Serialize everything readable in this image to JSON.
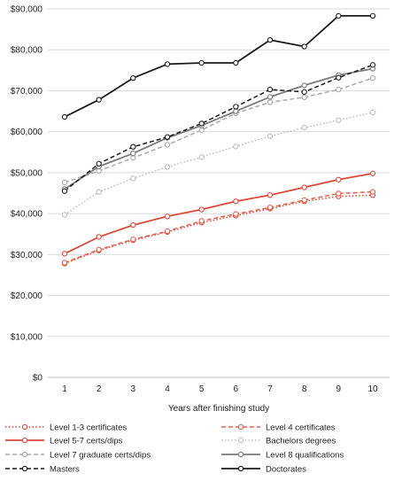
{
  "chart_data": {
    "type": "line",
    "title": "",
    "xlabel": "Years after finishing study",
    "ylabel": "",
    "x": [
      1,
      2,
      3,
      4,
      5,
      6,
      7,
      8,
      9,
      10
    ],
    "xlim": [
      1,
      10
    ],
    "ylim": [
      0,
      90000
    ],
    "yticks": [
      0,
      10000,
      20000,
      30000,
      40000,
      50000,
      60000,
      70000,
      80000,
      90000
    ],
    "ytick_labels": [
      "$0",
      "$10,000",
      "$20,000",
      "$30,000",
      "$40,000",
      "$50,000",
      "$60,000",
      "$70,000",
      "$80,000",
      "$90,000"
    ],
    "xtick_labels": [
      "1",
      "2",
      "3",
      "4",
      "5",
      "6",
      "7",
      "8",
      "9",
      "10"
    ],
    "grid": "horizontal",
    "legend_position": "bottom",
    "series": [
      {
        "name": "Level 1-3 certificates",
        "color": "#d94a3a",
        "dash": "dotted",
        "values": [
          27800,
          31000,
          33500,
          35500,
          37800,
          39500,
          41200,
          43000,
          44200,
          44500
        ]
      },
      {
        "name": "Level 4 certificates",
        "color": "#e0604e",
        "dash": "dashed",
        "values": [
          28000,
          31200,
          33700,
          35700,
          38200,
          39900,
          41500,
          43300,
          44900,
          45300
        ]
      },
      {
        "name": "Level 5-7 certs/dips",
        "color": "#d94a3a",
        "dash": "solid",
        "values": [
          30200,
          34300,
          37200,
          39300,
          41000,
          43000,
          44500,
          46400,
          48300,
          49800
        ]
      },
      {
        "name": "Bachelors degrees",
        "color": "#bdbdbd",
        "dash": "dotted",
        "values": [
          39700,
          45300,
          48600,
          51400,
          53800,
          56400,
          58900,
          61000,
          62800,
          64700
        ]
      },
      {
        "name": "Level 7 graduate certs/dips",
        "color": "#a8a8a8",
        "dash": "dashed",
        "values": [
          47600,
          50400,
          53600,
          56800,
          60400,
          64500,
          67200,
          68400,
          70300,
          73100
        ]
      },
      {
        "name": "Level 8 qualifications",
        "color": "#7a7a7a",
        "dash": "solid",
        "values": [
          46000,
          51500,
          54700,
          58500,
          61500,
          65000,
          68500,
          71300,
          73800,
          75400
        ]
      },
      {
        "name": "Masters",
        "color": "#1a1a1a",
        "dash": "dashed",
        "values": [
          45500,
          52200,
          56300,
          58700,
          62000,
          66100,
          70300,
          69700,
          73200,
          76300
        ]
      },
      {
        "name": "Doctorates",
        "color": "#1a1a1a",
        "dash": "solid",
        "values": [
          63600,
          67800,
          73100,
          76500,
          76800,
          76800,
          82400,
          80800,
          88300,
          88300
        ]
      }
    ]
  }
}
